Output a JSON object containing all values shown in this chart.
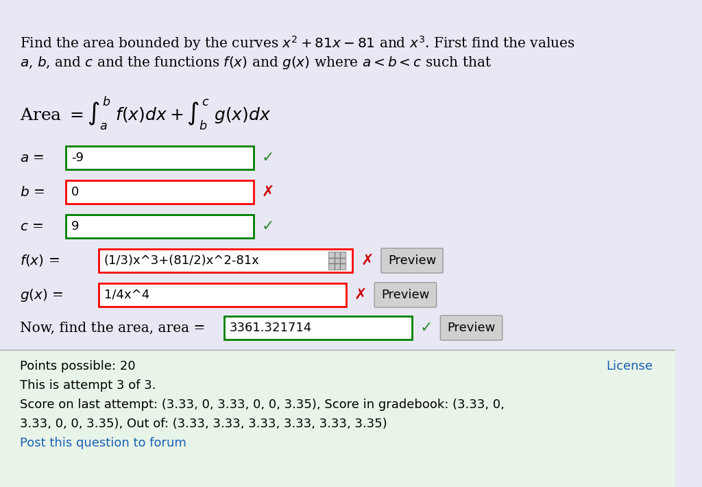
{
  "bg_color_top": "#e8e8f4",
  "bg_color_bottom": "#e8f4e8",
  "title_line1": "Find the area bounded by the curves $x^2 + 81x - 81$ and $x^3$. First find the values",
  "title_line2": "$a$, $b$, and $c$ and the functions $f(x)$ and $g(x)$ where $a < b < c$ such that",
  "area_formula": "Area $= \\int_a^b f(x)dx + \\int_b^c g(x)dx$",
  "fields": [
    {
      "label": "$a$ =",
      "value": "-9",
      "border": "green",
      "has_check": true,
      "has_x": false,
      "has_preview": false
    },
    {
      "label": "$b$ =",
      "value": "0",
      "border": "red",
      "has_check": false,
      "has_x": true,
      "has_preview": false
    },
    {
      "label": "$c$ =",
      "value": "9",
      "border": "green",
      "has_check": true,
      "has_x": false,
      "has_preview": false
    },
    {
      "label": "$f(x)$ =",
      "value": "(1/3)x^3+(81/2)x^2-81x",
      "border": "red",
      "has_check": false,
      "has_x": true,
      "has_preview": true,
      "has_icon": true
    },
    {
      "label": "$g(x)$ =",
      "value": "1/4x^4",
      "border": "red",
      "has_check": false,
      "has_x": true,
      "has_preview": true
    },
    {
      "label": "Now, find the area, area =",
      "value": "3361.321714",
      "border": "green",
      "has_check": true,
      "has_x": false,
      "has_preview": true
    }
  ],
  "bottom_text_lines": [
    "Points possible: 20",
    "This is attempt 3 of 3.",
    "Score on last attempt: (3.33, 0, 3.33, 0, 0, 3.35), Score in gradebook: (3.33, 0,",
    "3.33, 0, 0, 3.35), Out of: (3.33, 3.33, 3.33, 3.33, 3.33, 3.35)",
    "Post this question to forum"
  ],
  "license_text": "License",
  "text_color": "#000000",
  "link_color": "#1a5fb4",
  "check_color": "#2d8a2d",
  "x_color": "#cc0000",
  "preview_bg": "#d4d4d4",
  "input_bg": "#ffffff"
}
